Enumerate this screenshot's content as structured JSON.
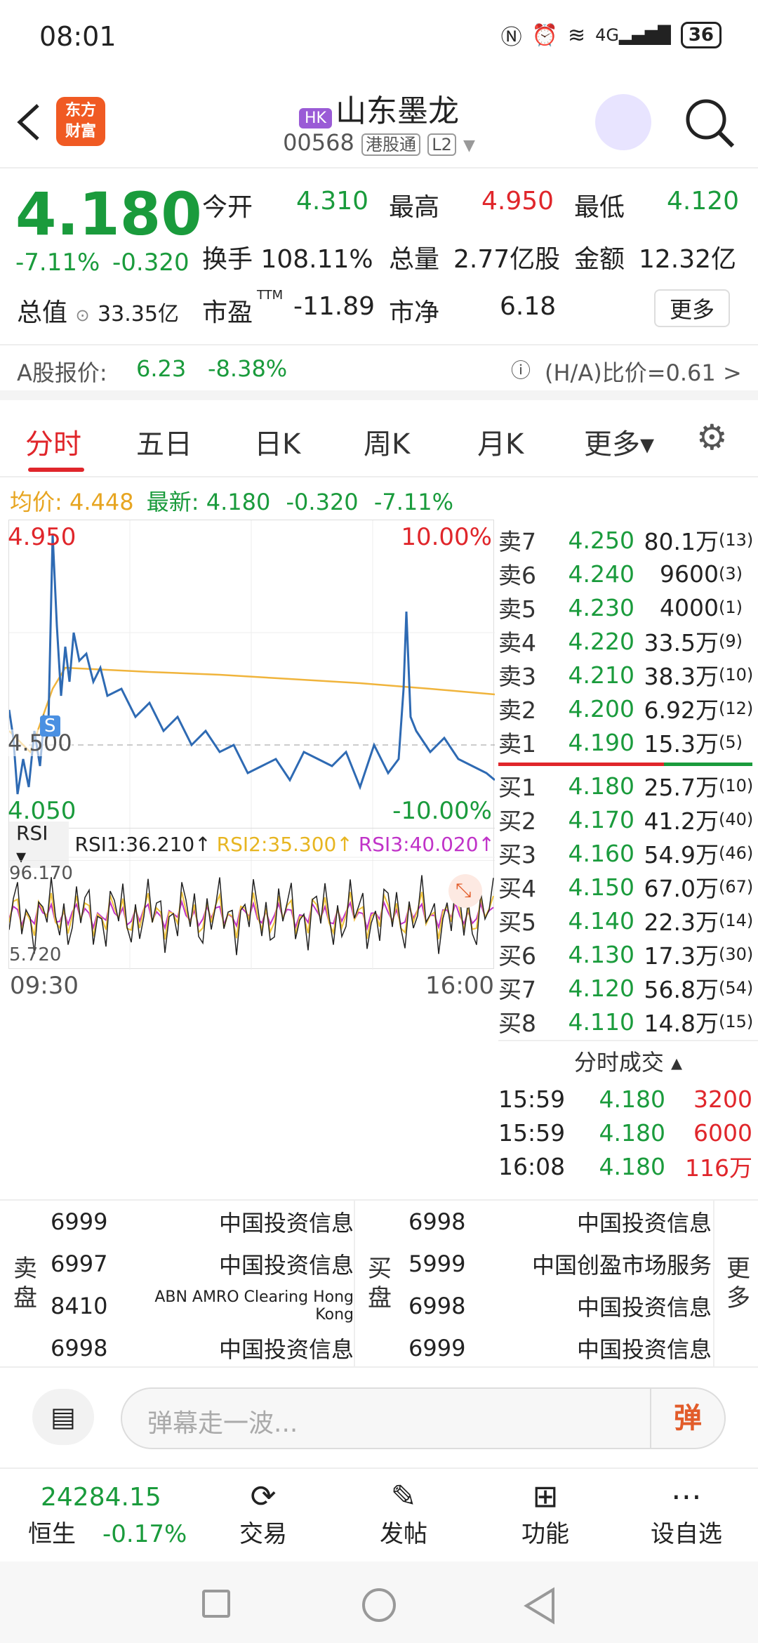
{
  "status": {
    "time": "08:01",
    "battery": "36"
  },
  "header": {
    "badge": "HK",
    "name": "山东墨龙",
    "code": "00568",
    "connect": "港股通",
    "level": "L2"
  },
  "quote": {
    "price": "4.180",
    "pct": "-7.11%",
    "change": "-0.320",
    "open_label": "今开",
    "open": "4.310",
    "high_label": "最高",
    "high": "4.950",
    "low_label": "最低",
    "low": "4.120",
    "turnover_label": "换手",
    "turnover": "108.11%",
    "volume_label": "总量",
    "volume": "2.77亿股",
    "amount_label": "金额",
    "amount": "12.32亿",
    "mcap_label": "总值",
    "mcap": "33.35亿",
    "pe_label": "市盈",
    "pe_sup": "TTM",
    "pe": "-11.89",
    "pb_label": "市净",
    "pb": "6.18",
    "more": "更多",
    "a_label": "A股报价:",
    "a_price": "6.23",
    "a_pct": "-8.38%",
    "ha": "(H/A)比价=0.61 >"
  },
  "tabs": [
    "分时",
    "五日",
    "日K",
    "周K",
    "月K",
    "更多▾"
  ],
  "legend": {
    "avg_label": "均价:",
    "avg": "4.448",
    "last_label": "最新:",
    "last": "4.180",
    "chg": "-0.320",
    "pct": "-7.11%"
  },
  "chart_data": {
    "type": "line",
    "ymax": "4.950",
    "ymin": "4.050",
    "pmax": "10.00%",
    "pmin": "-10.00%",
    "mid": "4.500",
    "start": "09:30",
    "end": "16:00",
    "marker": "S",
    "rsi": {
      "sel": "RSI",
      "r1": "RSI1:36.210↑",
      "r2": "RSI2:35.300↑",
      "r3": "RSI3:40.020↑",
      "max": "96.170",
      "min": "5.720"
    }
  },
  "orderbook": {
    "asks": [
      {
        "l": "卖7",
        "p": "4.250",
        "v": "80.1万",
        "c": "(13)"
      },
      {
        "l": "卖6",
        "p": "4.240",
        "v": "9600",
        "c": "(3)"
      },
      {
        "l": "卖5",
        "p": "4.230",
        "v": "4000",
        "c": "(1)"
      },
      {
        "l": "卖4",
        "p": "4.220",
        "v": "33.5万",
        "c": "(9)"
      },
      {
        "l": "卖3",
        "p": "4.210",
        "v": "38.3万",
        "c": "(10)"
      },
      {
        "l": "卖2",
        "p": "4.200",
        "v": "6.92万",
        "c": "(12)"
      },
      {
        "l": "卖1",
        "p": "4.190",
        "v": "15.3万",
        "c": "(5)"
      }
    ],
    "bids": [
      {
        "l": "买1",
        "p": "4.180",
        "v": "25.7万",
        "c": "(10)"
      },
      {
        "l": "买2",
        "p": "4.170",
        "v": "41.2万",
        "c": "(40)"
      },
      {
        "l": "买3",
        "p": "4.160",
        "v": "54.9万",
        "c": "(46)"
      },
      {
        "l": "买4",
        "p": "4.150",
        "v": "67.0万",
        "c": "(67)"
      },
      {
        "l": "买5",
        "p": "4.140",
        "v": "22.3万",
        "c": "(14)"
      },
      {
        "l": "买6",
        "p": "4.130",
        "v": "17.3万",
        "c": "(30)"
      },
      {
        "l": "买7",
        "p": "4.120",
        "v": "56.8万",
        "c": "(54)"
      },
      {
        "l": "买8",
        "p": "4.110",
        "v": "14.8万",
        "c": "(15)"
      }
    ],
    "trades_title": "分时成交 ▴",
    "trades": [
      {
        "t": "15:59",
        "p": "4.180",
        "v": "3200"
      },
      {
        "t": "15:59",
        "p": "4.180",
        "v": "6000"
      },
      {
        "t": "16:08",
        "p": "4.180",
        "v": "116万"
      }
    ]
  },
  "brokers": {
    "sell_label": "卖盘",
    "buy_label": "买盘",
    "more": "更多",
    "sell": [
      {
        "id": "6999",
        "n": "中国投资信息"
      },
      {
        "id": "6997",
        "n": "中国投资信息"
      },
      {
        "id": "8410",
        "n": "ABN AMRO Clearing Hong Kong"
      },
      {
        "id": "6998",
        "n": "中国投资信息"
      }
    ],
    "buy": [
      {
        "id": "6998",
        "n": "中国投资信息"
      },
      {
        "id": "5999",
        "n": "中国创盈市场服务"
      },
      {
        "id": "6998",
        "n": "中国投资信息"
      },
      {
        "id": "6999",
        "n": "中国投资信息"
      }
    ]
  },
  "comment": {
    "placeholder": "弹幕走一波...",
    "btn": "弹"
  },
  "footer": {
    "index": "24284.15",
    "index_name": "恒生",
    "index_pct": "-0.17%",
    "items": [
      "交易",
      "发帖",
      "功能",
      "设自选"
    ]
  }
}
